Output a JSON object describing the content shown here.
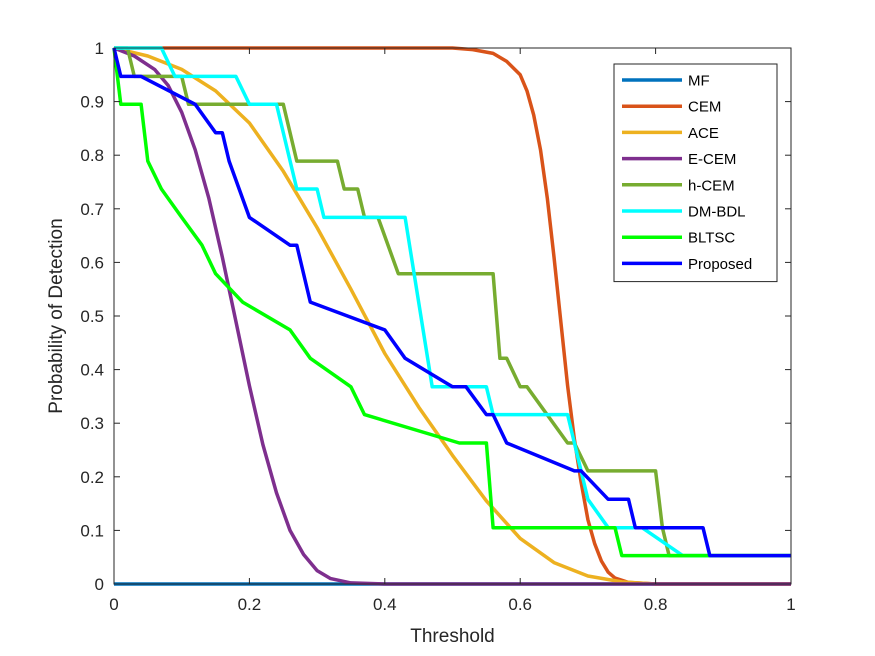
{
  "chart_data": {
    "type": "line",
    "title": "",
    "xlabel": "Threshold",
    "ylabel": "Probability of Detection",
    "xlim": [
      0,
      1
    ],
    "ylim": [
      0,
      1
    ],
    "xticks": [
      0,
      0.2,
      0.4,
      0.6,
      0.8,
      1
    ],
    "xtick_labels": [
      "0",
      "0.2",
      "0.4",
      "0.6",
      "0.8",
      "1"
    ],
    "yticks": [
      0,
      0.1,
      0.2,
      0.3,
      0.4,
      0.5,
      0.6,
      0.7,
      0.8,
      0.9,
      1
    ],
    "ytick_labels": [
      "0",
      "0.1",
      "0.2",
      "0.3",
      "0.4",
      "0.5",
      "0.6",
      "0.7",
      "0.8",
      "0.9",
      "1"
    ],
    "grid": false,
    "legend_position": "top-right",
    "series": [
      {
        "name": "MF",
        "color": "#0072BD",
        "x": [
          0,
          1
        ],
        "y": [
          0,
          0
        ]
      },
      {
        "name": "CEM",
        "color": "#D95319",
        "x": [
          0,
          0.45,
          0.5,
          0.53,
          0.56,
          0.58,
          0.6,
          0.61,
          0.62,
          0.63,
          0.64,
          0.65,
          0.66,
          0.67,
          0.68,
          0.69,
          0.7,
          0.71,
          0.72,
          0.73,
          0.74,
          0.76,
          0.8,
          1
        ],
        "y": [
          1,
          1,
          1,
          0.997,
          0.99,
          0.975,
          0.95,
          0.92,
          0.875,
          0.81,
          0.72,
          0.61,
          0.49,
          0.37,
          0.27,
          0.19,
          0.12,
          0.075,
          0.043,
          0.022,
          0.011,
          0.003,
          0,
          0
        ]
      },
      {
        "name": "ACE",
        "color": "#EDB120",
        "x": [
          0,
          0.05,
          0.1,
          0.15,
          0.2,
          0.25,
          0.3,
          0.35,
          0.4,
          0.45,
          0.5,
          0.55,
          0.6,
          0.65,
          0.7,
          0.75,
          0.8,
          1
        ],
        "y": [
          1,
          0.985,
          0.96,
          0.92,
          0.86,
          0.77,
          0.665,
          0.55,
          0.43,
          0.33,
          0.24,
          0.155,
          0.085,
          0.04,
          0.015,
          0.004,
          0,
          0
        ]
      },
      {
        "name": "E-CEM",
        "color": "#7E2F8E",
        "x": [
          0,
          0.03,
          0.06,
          0.08,
          0.1,
          0.12,
          0.14,
          0.16,
          0.18,
          0.2,
          0.22,
          0.24,
          0.26,
          0.28,
          0.3,
          0.32,
          0.35,
          0.4,
          1
        ],
        "y": [
          1,
          0.985,
          0.96,
          0.93,
          0.88,
          0.81,
          0.72,
          0.61,
          0.49,
          0.37,
          0.26,
          0.17,
          0.1,
          0.055,
          0.025,
          0.01,
          0.002,
          0,
          0
        ]
      },
      {
        "name": "h-CEM",
        "color": "#77AC30",
        "x": [
          0,
          0.02,
          0.03,
          0.1,
          0.11,
          0.25,
          0.27,
          0.33,
          0.34,
          0.36,
          0.37,
          0.39,
          0.42,
          0.56,
          0.57,
          0.58,
          0.6,
          0.61,
          0.67,
          0.68,
          0.7,
          0.8,
          0.81,
          0.82,
          1
        ],
        "y": [
          1,
          1,
          0.947,
          0.947,
          0.895,
          0.895,
          0.789,
          0.789,
          0.737,
          0.737,
          0.684,
          0.684,
          0.579,
          0.579,
          0.421,
          0.421,
          0.368,
          0.368,
          0.263,
          0.263,
          0.211,
          0.211,
          0.105,
          0.053,
          0.053
        ]
      },
      {
        "name": "DM-BDL",
        "color": "#00FFFF",
        "x": [
          0,
          0.07,
          0.09,
          0.18,
          0.2,
          0.24,
          0.27,
          0.3,
          0.31,
          0.43,
          0.47,
          0.55,
          0.56,
          0.56,
          0.6,
          0.67,
          0.7,
          0.73,
          0.78,
          0.84,
          1
        ],
        "y": [
          1,
          1,
          0.947,
          0.947,
          0.895,
          0.895,
          0.737,
          0.737,
          0.684,
          0.684,
          0.368,
          0.368,
          0.316,
          0.316,
          0.316,
          0.316,
          0.158,
          0.105,
          0.105,
          0.053,
          0.053
        ]
      },
      {
        "name": "BLTSC",
        "color": "#00FF00",
        "x": [
          0,
          0.01,
          0.04,
          0.05,
          0.07,
          0.1,
          0.13,
          0.15,
          0.19,
          0.26,
          0.29,
          0.35,
          0.37,
          0.51,
          0.55,
          0.56,
          0.74,
          0.75,
          1
        ],
        "y": [
          1,
          0.895,
          0.895,
          0.789,
          0.737,
          0.684,
          0.632,
          0.579,
          0.526,
          0.474,
          0.421,
          0.368,
          0.316,
          0.263,
          0.263,
          0.105,
          0.105,
          0.053,
          0.053
        ]
      },
      {
        "name": "Proposed",
        "color": "#0000FF",
        "x": [
          0,
          0.01,
          0.03,
          0.04,
          0.12,
          0.15,
          0.16,
          0.17,
          0.2,
          0.26,
          0.27,
          0.29,
          0.4,
          0.43,
          0.5,
          0.52,
          0.55,
          0.56,
          0.58,
          0.68,
          0.69,
          0.73,
          0.76,
          0.77,
          0.87,
          0.88,
          1
        ],
        "y": [
          1,
          0.947,
          0.947,
          0.947,
          0.895,
          0.842,
          0.842,
          0.789,
          0.684,
          0.632,
          0.632,
          0.526,
          0.474,
          0.421,
          0.368,
          0.368,
          0.316,
          0.316,
          0.263,
          0.211,
          0.211,
          0.158,
          0.158,
          0.105,
          0.105,
          0.053,
          0.053
        ]
      }
    ]
  }
}
